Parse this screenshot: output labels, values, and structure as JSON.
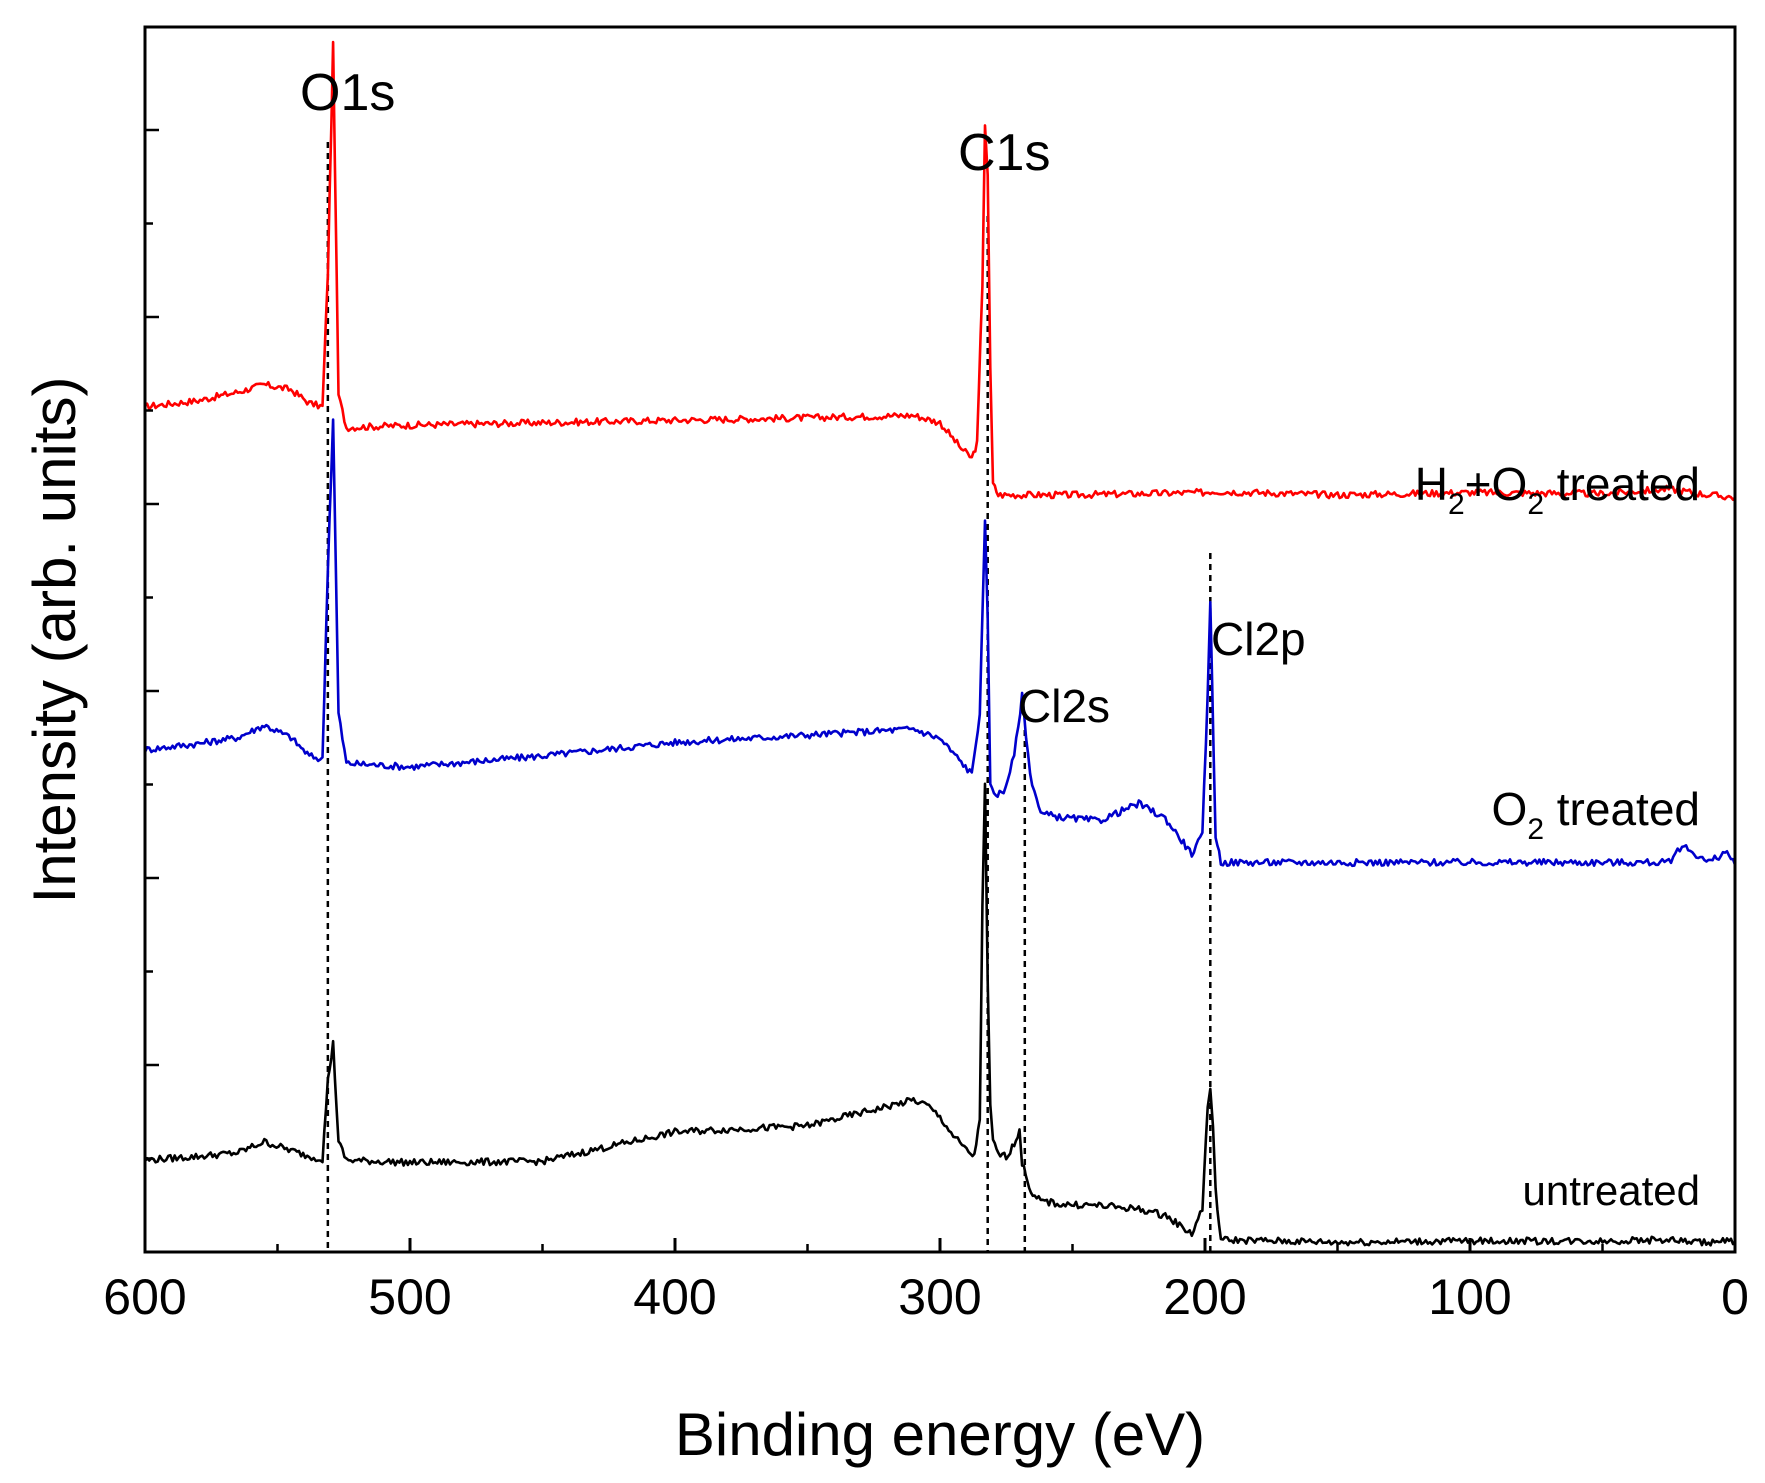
{
  "chart_data": {
    "type": "line",
    "title": "",
    "xlabel": "Binding energy (eV)",
    "ylabel": "Intensity (arb. units)",
    "xlim": [
      600,
      0
    ],
    "ylim": [
      0,
      100
    ],
    "x_ticks": [
      600,
      500,
      400,
      300,
      200,
      100,
      0
    ],
    "x_tick_labels": [
      "600",
      "500",
      "400",
      "300",
      "200",
      "100",
      "0"
    ],
    "y_tick_labels_shown": false,
    "series": [
      {
        "name": "H2+O2 treated",
        "label_main": "H",
        "label_sub1": "2",
        "label_mid": "+O",
        "label_sub2": "2",
        "label_rest": " treated",
        "color": "#ff0000",
        "x": [
          600,
          580,
          565,
          555,
          545,
          538,
          533,
          531,
          529,
          527,
          524,
          500,
          450,
          400,
          350,
          310,
          300,
          292,
          288,
          286,
          284,
          283,
          282,
          281,
          280,
          278,
          270,
          250,
          200,
          198,
          150,
          100,
          50,
          25,
          10,
          0
        ],
        "values": [
          69.0,
          69.5,
          70.2,
          70.8,
          70.4,
          69.3,
          69.0,
          80.0,
          98.5,
          70.0,
          67.3,
          67.5,
          67.7,
          67.9,
          68.1,
          68.3,
          67.7,
          65.6,
          64.8,
          66.0,
          79.0,
          92.1,
          88.0,
          72.0,
          62.7,
          61.8,
          61.8,
          61.8,
          62.0,
          62.1,
          61.8,
          62.0,
          61.9,
          62.3,
          61.8,
          61.6
        ]
      },
      {
        "name": "O2 treated",
        "label_main": "O",
        "label_sub1": "2",
        "label_rest": " treated",
        "color": "#0000cc",
        "x": [
          600,
          580,
          565,
          555,
          545,
          538,
          533,
          531,
          529,
          527,
          524,
          500,
          450,
          400,
          350,
          310,
          300,
          292,
          288,
          285,
          283,
          282,
          281,
          279,
          276,
          272,
          269,
          266,
          262,
          255,
          240,
          225,
          215,
          205,
          201,
          199,
          198,
          196,
          194,
          190,
          150,
          100,
          50,
          25,
          20,
          10,
          3,
          0
        ],
        "values": [
          41.0,
          41.5,
          42.0,
          43.0,
          42.0,
          40.5,
          40.2,
          56.0,
          68.0,
          44.0,
          39.9,
          39.6,
          40.5,
          41.6,
          42.2,
          42.7,
          41.9,
          40.0,
          39.0,
          44.0,
          59.5,
          52.0,
          38.0,
          37.4,
          37.5,
          40.5,
          45.4,
          39.0,
          35.8,
          35.5,
          35.2,
          36.6,
          35.4,
          32.5,
          34.0,
          45.4,
          53.0,
          34.0,
          31.8,
          31.8,
          31.8,
          31.8,
          31.8,
          31.8,
          33.2,
          31.8,
          32.7,
          31.6
        ]
      },
      {
        "name": "untreated",
        "label_main": "untreated",
        "color": "#000000",
        "x": [
          600,
          580,
          565,
          555,
          545,
          538,
          533,
          531,
          529,
          527,
          524,
          500,
          450,
          400,
          350,
          310,
          305,
          300,
          295,
          290,
          287,
          285,
          284,
          283,
          282,
          281,
          280,
          278,
          275,
          272,
          270,
          269,
          267,
          265,
          262,
          255,
          240,
          225,
          215,
          205,
          201,
          199,
          198,
          197,
          196,
          194,
          150,
          100,
          50,
          25,
          15,
          10,
          3,
          0
        ],
        "values": [
          7.5,
          7.8,
          8.1,
          9.0,
          8.3,
          7.8,
          7.6,
          14.0,
          17.0,
          9.0,
          7.5,
          7.3,
          7.4,
          9.8,
          10.3,
          12.4,
          12.0,
          11.0,
          9.5,
          8.3,
          7.8,
          11.0,
          28.0,
          38.0,
          22.0,
          12.0,
          9.0,
          8.0,
          7.8,
          8.8,
          10.0,
          7.2,
          5.9,
          4.5,
          4.2,
          3.9,
          3.8,
          3.5,
          3.0,
          1.5,
          3.5,
          12.0,
          13.3,
          10.0,
          5.0,
          1.0,
          0.8,
          0.9,
          0.9,
          1.0,
          0.8,
          0.8,
          0.9,
          0.8
        ]
      }
    ],
    "peak_markers": [
      {
        "label": "O1s",
        "x": 531
      },
      {
        "label": "C1s",
        "x": 282
      },
      {
        "label": "Cl2s",
        "x": 268
      },
      {
        "label": "Cl2p",
        "x": 198
      }
    ],
    "grid": false,
    "legend": "none"
  }
}
